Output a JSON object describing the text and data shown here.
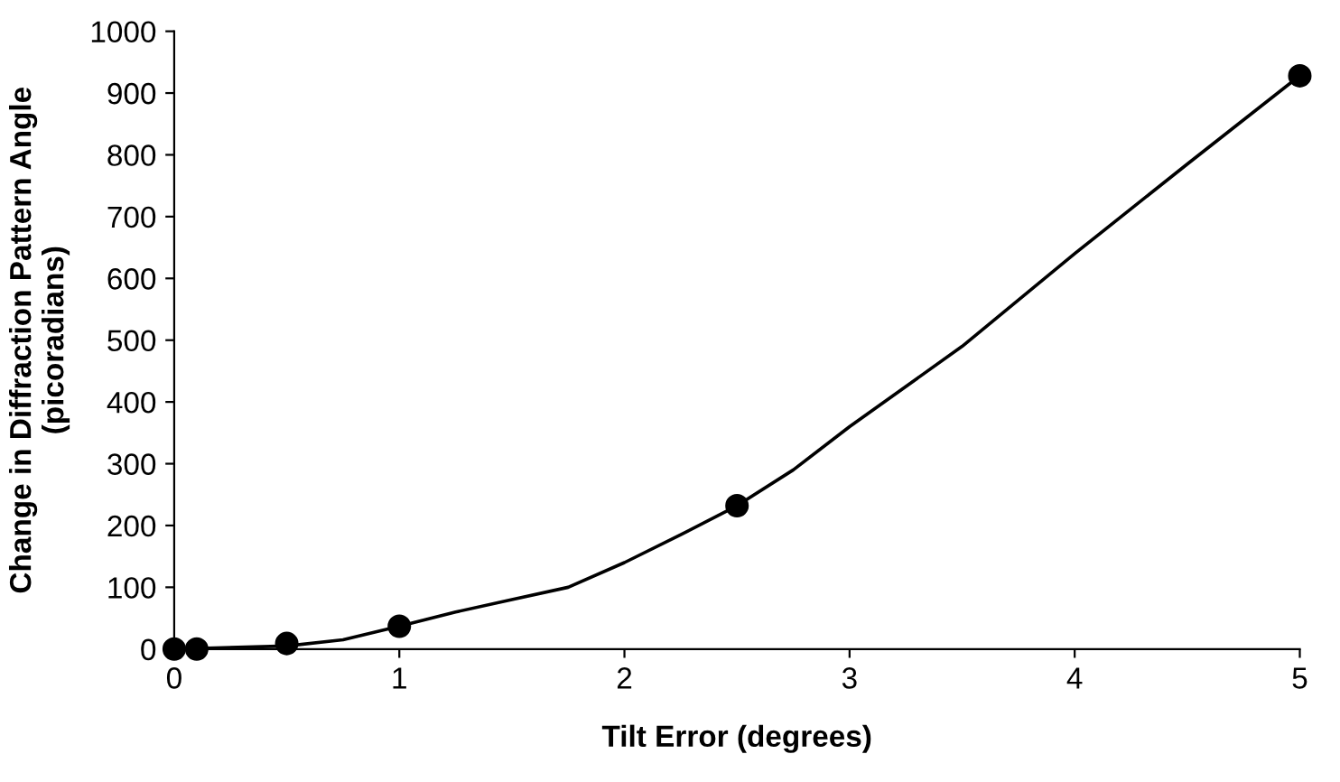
{
  "chart_data": {
    "type": "line",
    "xlabel": "Tilt Error (degrees)",
    "ylabel": "Change in Diffraction Pattern Angle\n(picoradians)",
    "xlim": [
      0,
      5
    ],
    "ylim": [
      0,
      1000
    ],
    "xticks": [
      0,
      1,
      2,
      3,
      4,
      5
    ],
    "yticks": [
      0,
      100,
      200,
      300,
      400,
      500,
      600,
      700,
      800,
      900,
      1000
    ],
    "grid": false,
    "legend": false,
    "series": [
      {
        "color": "#000000",
        "marker": "none",
        "line_style": "solid",
        "x": [
          0,
          0.5,
          0.75,
          1,
          1.25,
          1.5,
          1.75,
          2,
          2.25,
          2.5,
          2.75,
          3,
          3.5,
          4,
          4.5,
          5
        ],
        "values": [
          0,
          5,
          15,
          37,
          60,
          80,
          100,
          140,
          185,
          232,
          290,
          360,
          490,
          640,
          785,
          928
        ]
      },
      {
        "type": "scatter",
        "color": "#000000",
        "marker": "circle",
        "x": [
          0,
          0.1,
          0.5,
          1,
          2.5,
          5
        ],
        "values": [
          0,
          0,
          9,
          37,
          232,
          928
        ]
      }
    ]
  }
}
